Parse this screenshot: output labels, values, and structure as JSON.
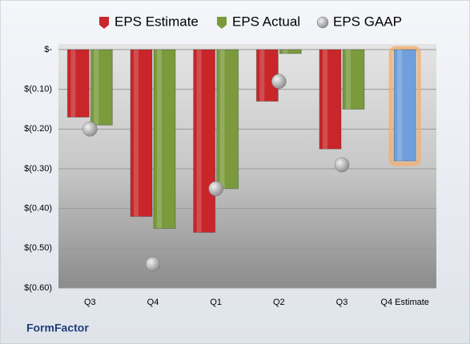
{
  "chart_data": {
    "type": "bar",
    "categories": [
      "Q3",
      "Q4",
      "Q1",
      "Q2",
      "Q3",
      "Q4 Estimate"
    ],
    "series": [
      {
        "name": "EPS Estimate",
        "color": "#c8262a",
        "values": [
          -0.17,
          -0.42,
          -0.46,
          -0.13,
          -0.25,
          -0.28
        ],
        "highlight": {
          "index": 5,
          "color": "#6f9fdc"
        }
      },
      {
        "name": "EPS Actual",
        "color": "#7a9a3c",
        "values": [
          -0.19,
          -0.45,
          -0.35,
          -0.01,
          -0.15,
          null
        ]
      },
      {
        "name": "EPS GAAP",
        "color": "#a6a6a6",
        "marker": "circle",
        "values": [
          -0.2,
          -0.54,
          -0.35,
          -0.08,
          -0.29,
          null
        ]
      }
    ],
    "ylim": [
      -0.6,
      0
    ],
    "yticks": [
      {
        "value": 0,
        "label": "$-"
      },
      {
        "value": -0.1,
        "label": "$(0.10)"
      },
      {
        "value": -0.2,
        "label": "$(0.20)"
      },
      {
        "value": -0.3,
        "label": "$(0.30)"
      },
      {
        "value": -0.4,
        "label": "$(0.40)"
      },
      {
        "value": -0.5,
        "label": "$(0.50)"
      },
      {
        "value": -0.6,
        "label": "$(0.60)"
      }
    ],
    "grid": true,
    "legend": "top",
    "footer": "FormFactor"
  }
}
